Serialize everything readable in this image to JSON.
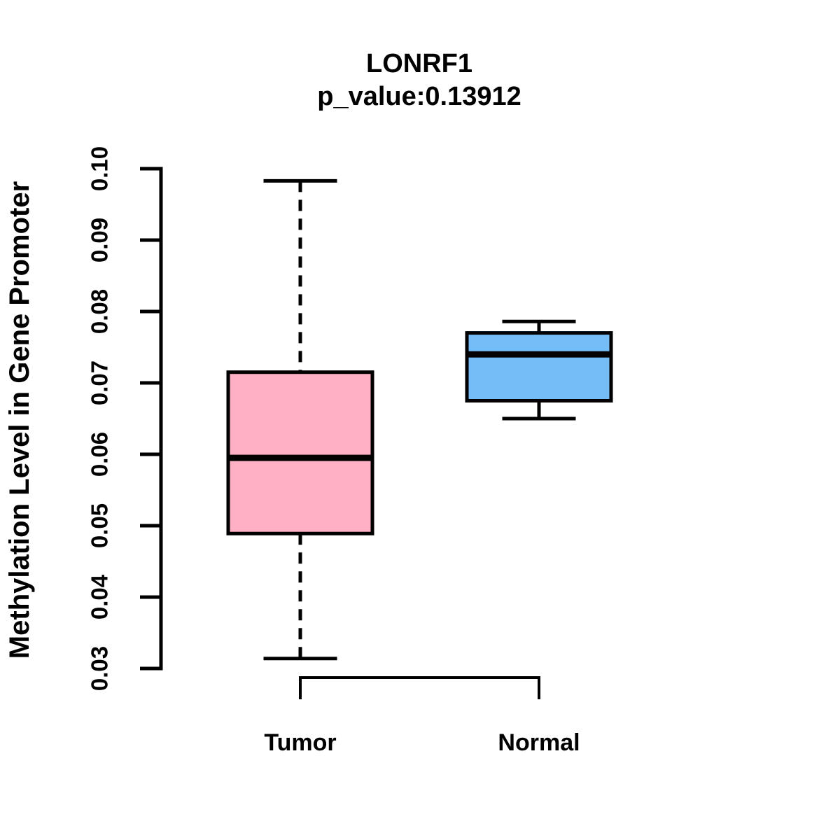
{
  "chart_data": {
    "type": "boxplot",
    "title": "LONRF1",
    "subtitle": "p_value:0.13912",
    "p_value": 0.13912,
    "ylabel": "Methylation Level in Gene Promoter",
    "xlabel": "",
    "ylim": [
      0.03,
      0.1
    ],
    "yticks": [
      0.03,
      0.04,
      0.05,
      0.06,
      0.07,
      0.08,
      0.09,
      0.1
    ],
    "categories": [
      "Tumor",
      "Normal"
    ],
    "series": [
      {
        "name": "Tumor",
        "color": "#FFB0C4",
        "min": 0.0314,
        "q1": 0.0489,
        "median": 0.0595,
        "q3": 0.0715,
        "max": 0.0983
      },
      {
        "name": "Normal",
        "color": "#74BDF7",
        "min": 0.065,
        "q1": 0.0675,
        "median": 0.074,
        "q3": 0.077,
        "max": 0.0786
      }
    ],
    "grid": false,
    "legend": false,
    "line_color": "#000000",
    "background_color": "#ffffff"
  }
}
